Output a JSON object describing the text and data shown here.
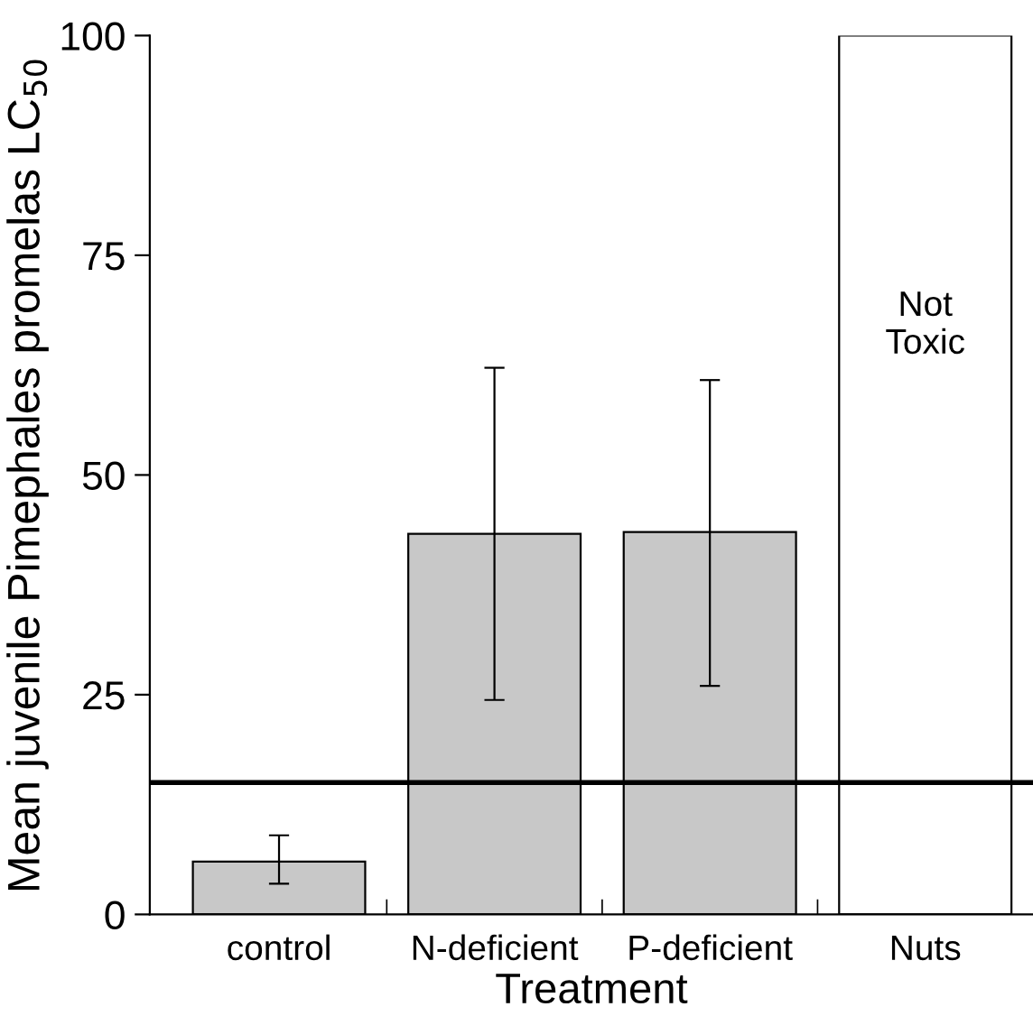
{
  "chart_data": {
    "type": "bar",
    "xlabel": "Treatment",
    "ylabel": "Mean juvenile Pimephales promelas LC$_{50}$",
    "categories": [
      "control",
      "N-deficient",
      "P-deficient",
      "Nuts"
    ],
    "values": [
      6,
      43.3,
      43.5,
      100
    ],
    "colors": [
      "#c8c8c8",
      "#c8c8c8",
      "#c8c8c8",
      "#ffffff"
    ],
    "errors": [
      [
        3.5,
        9
      ],
      [
        24.4,
        62.2
      ],
      [
        26,
        60.8
      ],
      null
    ],
    "ylim": [
      0,
      100
    ],
    "yticks": [
      0,
      25,
      50,
      75,
      100
    ],
    "ref_lines": [
      {
        "axis": "y",
        "value": 15,
        "color": "#000000",
        "line_style": "solid"
      }
    ],
    "annotations": [
      "Not\nToxic"
    ],
    "grid": false,
    "legend": false
  }
}
